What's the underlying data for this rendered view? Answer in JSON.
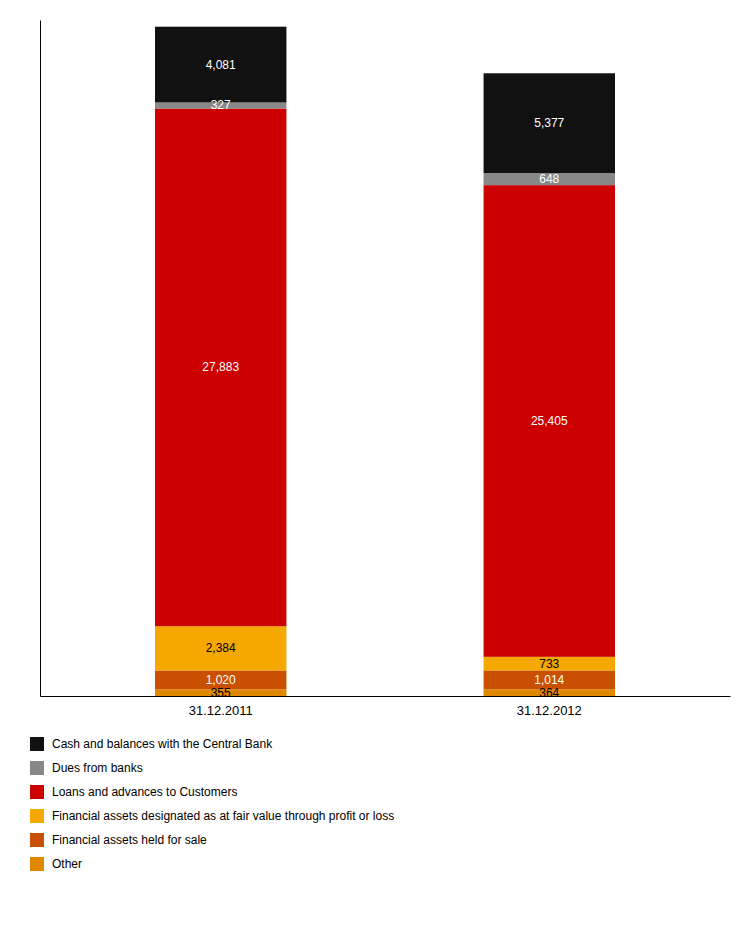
{
  "chart_data": {
    "type": "bar",
    "stacked": true,
    "data_labels": true,
    "tick_labels": "x",
    "grid": false,
    "legend": "bottom",
    "categories": [
      "31.12.2011",
      "31.12.2012"
    ],
    "ylim": [
      0,
      36410.5
    ],
    "series": [
      {
        "name": "Cash and balances with the Central Bank",
        "color": "#111111",
        "values": [
          4081,
          5377
        ],
        "value_labels": [
          "4,081",
          "5,377"
        ]
      },
      {
        "name": "Dues from banks",
        "color": "#888888",
        "values": [
          327,
          648
        ],
        "value_labels": [
          "327",
          "648"
        ]
      },
      {
        "name": "Loans and advances to Customers",
        "color": "#cc0000",
        "values": [
          27883,
          25405
        ],
        "value_labels": [
          "27,883",
          "25,405"
        ]
      },
      {
        "name": "Financial assets designated as at fair value through profit or loss",
        "color": "#f5a800",
        "values": [
          2384,
          733
        ],
        "value_labels": [
          "2,384",
          "733"
        ]
      },
      {
        "name": "Financial assets held for sale",
        "color": "#c85000",
        "values": [
          1020,
          1014
        ],
        "value_labels": [
          "1,020",
          "1,014"
        ]
      },
      {
        "name": "Other",
        "color": "#e08800",
        "values": [
          355,
          364
        ],
        "value_labels": [
          "355",
          "364"
        ]
      }
    ]
  }
}
